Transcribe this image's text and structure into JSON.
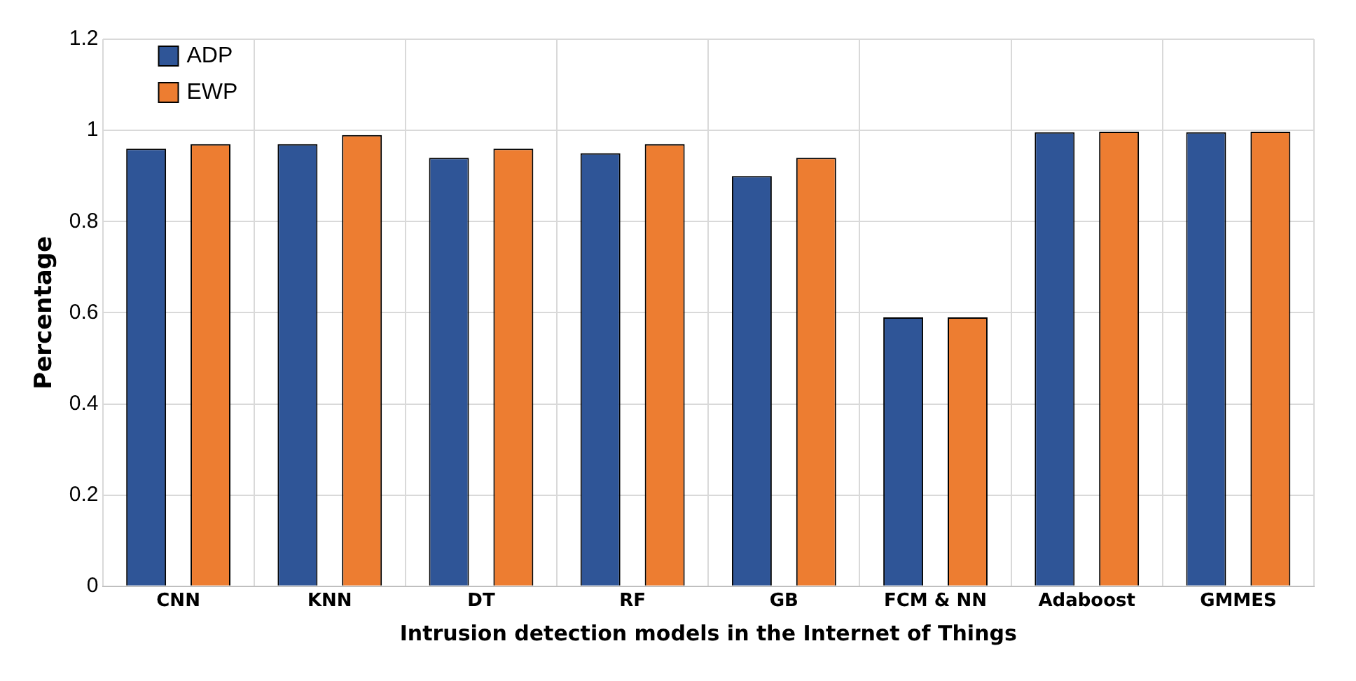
{
  "chart_data": {
    "type": "bar",
    "xlabel": "Intrusion detection models in the Internet of Things",
    "ylabel": "Percentage",
    "categories": [
      "CNN",
      "KNN",
      "DT",
      "RF",
      "GB",
      "FCM & NN",
      "Adaboost",
      "GMMES"
    ],
    "series": [
      {
        "name": "ADP",
        "color": "#2f5597",
        "values": [
          0.96,
          0.97,
          0.94,
          0.95,
          0.9,
          0.59,
          0.996,
          0.996
        ]
      },
      {
        "name": "EWP",
        "color": "#ed7d31",
        "values": [
          0.97,
          0.99,
          0.96,
          0.97,
          0.94,
          0.59,
          0.997,
          0.997
        ]
      }
    ],
    "ylim": [
      0,
      1.2
    ],
    "yticks": [
      0,
      0.2,
      0.4,
      0.6,
      0.8,
      1,
      1.2
    ],
    "grid": true,
    "legend": "top left"
  }
}
